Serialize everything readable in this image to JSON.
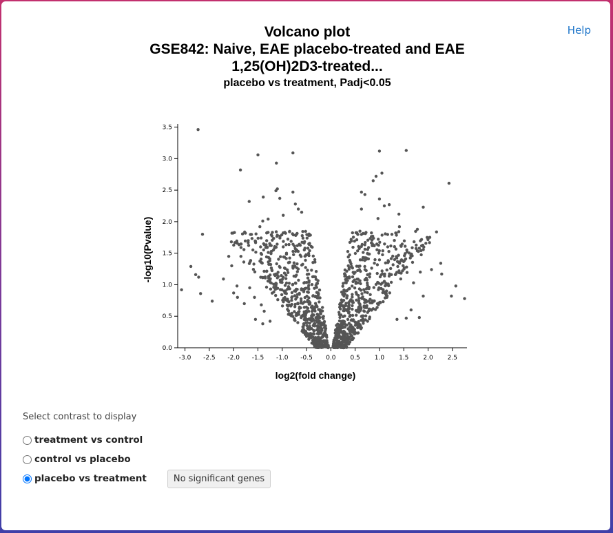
{
  "help": {
    "label": "Help"
  },
  "header": {
    "title_lines": [
      "Volcano plot",
      "GSE842: Naive, EAE placebo-treated and EAE",
      "1,25(OH)2D3-treated..."
    ],
    "subtitle": "placebo vs treatment, Padj<0.05"
  },
  "controls": {
    "label": "Select contrast to display",
    "options": [
      {
        "label": "treatment vs control",
        "selected": false
      },
      {
        "label": "control vs placebo",
        "selected": false
      },
      {
        "label": "placebo vs treatment",
        "selected": true
      }
    ],
    "status_button": "No significant genes"
  },
  "colors": {
    "point": "#555555",
    "axis": "#000000"
  },
  "chart_data": {
    "type": "scatter",
    "xlabel": "log2(fold change)",
    "ylabel": "-log10(Pvalue)",
    "xlim": [
      -3.15,
      2.8
    ],
    "ylim": [
      0,
      3.55
    ],
    "xticks": [
      "-3.0",
      "-2.5",
      "-2.0",
      "-1.5",
      "-1.0",
      "-0.5",
      "0.0",
      "0.5",
      "1.0",
      "1.5",
      "2.0",
      "2.5"
    ],
    "yticks": [
      "0.0",
      "0.5",
      "1.0",
      "1.5",
      "2.0",
      "2.5",
      "3.0",
      "3.5"
    ],
    "grid": false,
    "points": [
      [
        -2.73,
        3.46
      ],
      [
        -1.5,
        3.06
      ],
      [
        -0.78,
        3.09
      ],
      [
        -1.12,
        2.93
      ],
      [
        -1.86,
        2.82
      ],
      [
        -1.1,
        2.52
      ],
      [
        -1.13,
        2.49
      ],
      [
        -0.78,
        2.47
      ],
      [
        -1.39,
        2.39
      ],
      [
        -1.05,
        2.37
      ],
      [
        -0.73,
        2.28
      ],
      [
        -1.68,
        2.32
      ],
      [
        -0.67,
        2.2
      ],
      [
        -1.29,
        2.04
      ],
      [
        -1.4,
        2.01
      ],
      [
        -0.98,
        2.1
      ],
      [
        -0.6,
        2.15
      ],
      [
        -1.46,
        1.92
      ],
      [
        -1.01,
        1.79
      ],
      [
        -1.7,
        1.7
      ],
      [
        -2.64,
        1.8
      ],
      [
        -0.98,
        1.6
      ],
      [
        -1.16,
        1.58
      ],
      [
        -1.85,
        1.45
      ],
      [
        -2.1,
        1.45
      ],
      [
        -1.79,
        1.36
      ],
      [
        -2.04,
        1.3
      ],
      [
        -2.88,
        1.29
      ],
      [
        -2.78,
        1.16
      ],
      [
        -2.72,
        1.12
      ],
      [
        -2.21,
        1.09
      ],
      [
        -3.07,
        0.92
      ],
      [
        -2.68,
        0.86
      ],
      [
        -2.44,
        0.74
      ],
      [
        -2.0,
        0.87
      ],
      [
        -1.92,
        0.8
      ],
      [
        -1.67,
        0.95
      ],
      [
        -1.57,
        0.8
      ],
      [
        -1.43,
        0.68
      ],
      [
        -1.37,
        0.58
      ],
      [
        -1.4,
        0.38
      ],
      [
        -1.25,
        0.42
      ],
      [
        -1.55,
        0.45
      ],
      [
        -1.78,
        0.7
      ],
      [
        -1.93,
        0.98
      ],
      [
        1.55,
        3.13
      ],
      [
        1.0,
        3.12
      ],
      [
        1.05,
        2.77
      ],
      [
        0.93,
        2.72
      ],
      [
        0.87,
        2.65
      ],
      [
        0.63,
        2.47
      ],
      [
        0.7,
        2.43
      ],
      [
        1.0,
        2.36
      ],
      [
        2.43,
        2.61
      ],
      [
        1.2,
        2.27
      ],
      [
        1.1,
        2.25
      ],
      [
        1.9,
        2.23
      ],
      [
        0.63,
        2.2
      ],
      [
        1.4,
        2.12
      ],
      [
        0.97,
        2.05
      ],
      [
        1.41,
        1.92
      ],
      [
        1.78,
        1.88
      ],
      [
        1.98,
        1.75
      ],
      [
        1.44,
        1.62
      ],
      [
        1.17,
        1.6
      ],
      [
        1.82,
        1.58
      ],
      [
        2.07,
        1.24
      ],
      [
        2.26,
        1.34
      ],
      [
        2.28,
        1.17
      ],
      [
        1.84,
        1.2
      ],
      [
        2.48,
        0.82
      ],
      [
        2.57,
        0.98
      ],
      [
        2.75,
        0.78
      ],
      [
        1.7,
        1.03
      ],
      [
        1.9,
        0.82
      ],
      [
        1.65,
        0.6
      ],
      [
        1.82,
        0.48
      ],
      [
        1.55,
        0.47
      ],
      [
        1.36,
        0.45
      ]
    ]
  }
}
